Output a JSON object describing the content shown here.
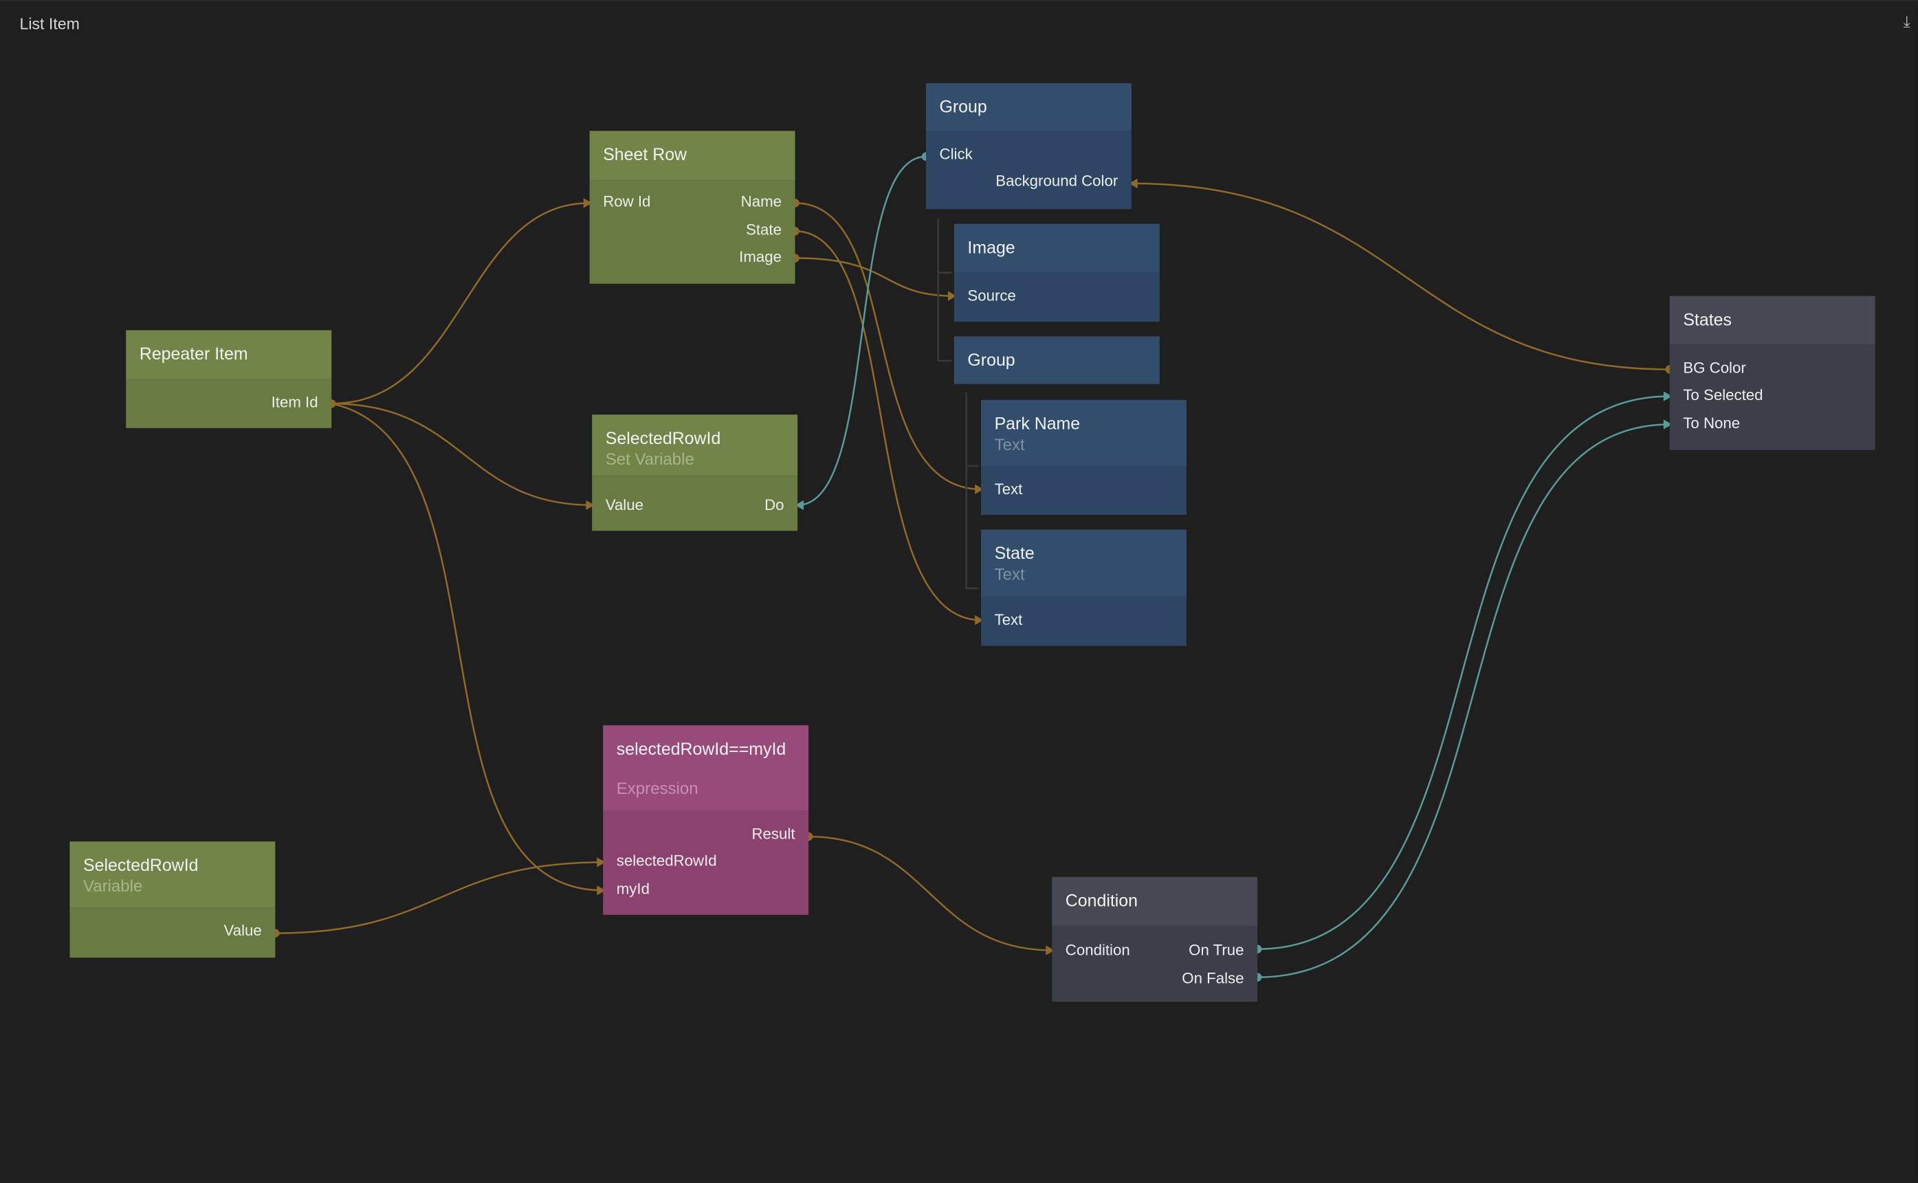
{
  "window": {
    "title": "List Item",
    "icon": "download-icon"
  },
  "colors": {
    "background": "#1f1f1f",
    "data_wire": "#8f6a2a",
    "signal_wire": "#5a9a9a",
    "logic_node": "#728447",
    "visual_node": "#334d6c",
    "expression_node": "#984b7b",
    "utility_node": "#464954"
  },
  "nodes": {
    "group_top": {
      "name": "Group",
      "ports": [
        "Click",
        "Background Color"
      ]
    },
    "sheet_row": {
      "name": "Sheet Row",
      "ports": [
        "Row Id",
        "Name",
        "State",
        "Image"
      ]
    },
    "repeater_item": {
      "name": "Repeater Item",
      "ports": [
        "Item Id"
      ]
    },
    "set_variable": {
      "name": "SelectedRowId",
      "type": "Set Variable",
      "ports": [
        "Value",
        "Do"
      ]
    },
    "image": {
      "name": "Image",
      "ports": [
        "Source"
      ]
    },
    "group_inner": {
      "name": "Group"
    },
    "park_name": {
      "name": "Park Name",
      "type": "Text",
      "ports": [
        "Text"
      ]
    },
    "state": {
      "name": "State",
      "type": "Text",
      "ports": [
        "Text"
      ]
    },
    "states": {
      "name": "States",
      "ports": [
        "BG Color",
        "To Selected",
        "To None"
      ]
    },
    "expression": {
      "name": "selectedRowId==myId",
      "type": "Expression",
      "ports": [
        "Result",
        "selectedRowId",
        "myId"
      ]
    },
    "variable": {
      "name": "SelectedRowId",
      "type": "Variable",
      "ports": [
        "Value"
      ]
    },
    "condition": {
      "name": "Condition",
      "ports": [
        "Condition",
        "On True",
        "On False"
      ]
    }
  },
  "connections": [
    [
      "Repeater Item.Item Id",
      "Sheet Row.Row Id"
    ],
    [
      "Repeater Item.Item Id",
      "SelectedRowId.Value"
    ],
    [
      "Repeater Item.Item Id",
      "selectedRowId==myId.myId"
    ],
    [
      "Sheet Row.Name",
      "Park Name.Text"
    ],
    [
      "Sheet Row.State",
      "State.Text"
    ],
    [
      "Sheet Row.Image",
      "Image.Source"
    ],
    [
      "Group.Click",
      "SelectedRowId.Do"
    ],
    [
      "States.BG Color",
      "Group.Background Color"
    ],
    [
      "SelectedRowId Variable.Value",
      "selectedRowId==myId.selectedRowId"
    ],
    [
      "selectedRowId==myId.Result",
      "Condition.Condition"
    ],
    [
      "Condition.On True",
      "States.To Selected"
    ],
    [
      "Condition.On False",
      "States.To None"
    ]
  ]
}
